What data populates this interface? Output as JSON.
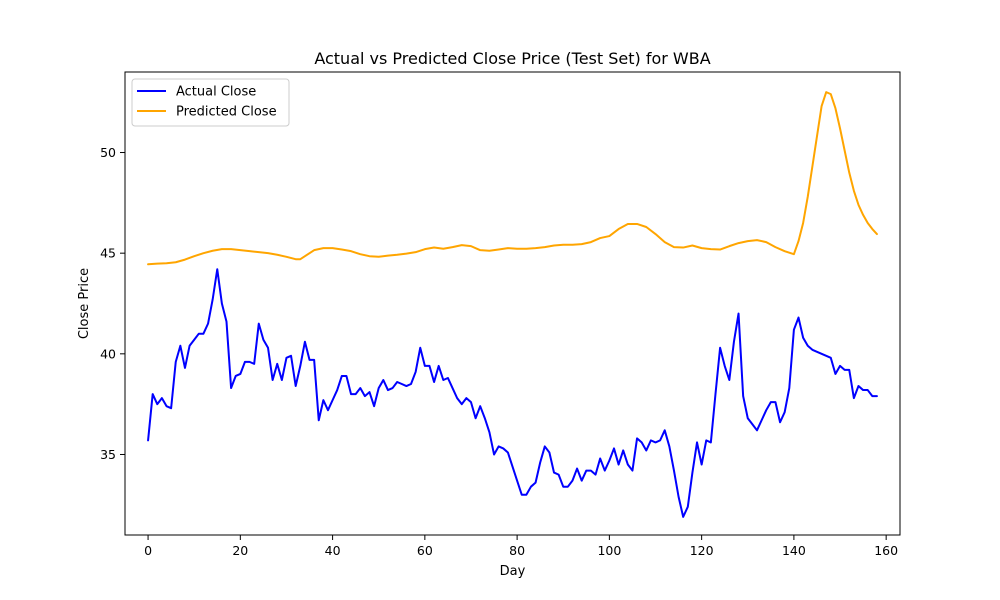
{
  "chart_data": {
    "type": "line",
    "title": "Actual vs Predicted Close Price (Test Set) for WBA",
    "xlabel": "Day",
    "ylabel": "Close Price",
    "xlim": [
      -5,
      163
    ],
    "ylim": [
      31,
      54
    ],
    "xticks": [
      "0",
      "20",
      "40",
      "60",
      "80",
      "100",
      "120",
      "140",
      "160"
    ],
    "yticks": [
      "35",
      "40",
      "45",
      "50"
    ],
    "grid": false,
    "legend_position": "top-left",
    "series": [
      {
        "name": "Actual Close",
        "color": "#0000ff",
        "x": [
          0,
          1,
          2,
          3,
          4,
          5,
          6,
          7,
          8,
          9,
          10,
          11,
          12,
          13,
          14,
          15,
          16,
          17,
          18,
          19,
          20,
          21,
          22,
          23,
          24,
          25,
          26,
          27,
          28,
          29,
          30,
          31,
          32,
          33,
          34,
          35,
          36,
          37,
          38,
          39,
          40,
          41,
          42,
          43,
          44,
          45,
          46,
          47,
          48,
          49,
          50,
          51,
          52,
          53,
          54,
          55,
          56,
          57,
          58,
          59,
          60,
          61,
          62,
          63,
          64,
          65,
          66,
          67,
          68,
          69,
          70,
          71,
          72,
          73,
          74,
          75,
          76,
          77,
          78,
          79,
          80,
          81,
          82,
          83,
          84,
          85,
          86,
          87,
          88,
          89,
          90,
          91,
          92,
          93,
          94,
          95,
          96,
          97,
          98,
          99,
          100,
          101,
          102,
          103,
          104,
          105,
          106,
          107,
          108,
          109,
          110,
          111,
          112,
          113,
          114,
          115,
          116,
          117,
          118,
          119,
          120,
          121,
          122,
          123,
          124,
          125,
          126,
          127,
          128,
          129,
          130,
          131,
          132,
          133,
          134,
          135,
          136,
          137,
          138,
          139,
          140,
          141,
          142,
          143,
          144,
          145,
          146,
          147,
          148,
          149,
          150,
          151,
          152,
          153,
          154,
          155,
          156,
          157,
          158
        ],
        "values": [
          35.7,
          38.0,
          37.5,
          37.8,
          37.4,
          37.3,
          39.6,
          40.4,
          39.3,
          40.4,
          40.7,
          41.0,
          41.0,
          41.5,
          42.7,
          44.2,
          42.5,
          41.6,
          38.3,
          38.9,
          39.0,
          39.6,
          39.6,
          39.5,
          41.5,
          40.7,
          40.3,
          38.7,
          39.5,
          38.7,
          39.8,
          39.9,
          38.4,
          39.4,
          40.6,
          39.7,
          39.7,
          36.7,
          37.7,
          37.2,
          37.7,
          38.2,
          38.9,
          38.9,
          38.0,
          38.0,
          38.3,
          37.9,
          38.1,
          37.4,
          38.3,
          38.7,
          38.2,
          38.3,
          38.6,
          38.5,
          38.4,
          38.5,
          39.1,
          40.3,
          39.4,
          39.4,
          38.6,
          39.4,
          38.7,
          38.8,
          38.3,
          37.8,
          37.5,
          37.8,
          37.6,
          36.8,
          37.4,
          36.8,
          36.1,
          35.0,
          35.4,
          35.3,
          35.1,
          34.4,
          33.7,
          33.0,
          33.0,
          33.4,
          33.6,
          34.6,
          35.4,
          35.1,
          34.1,
          34.0,
          33.4,
          33.4,
          33.7,
          34.3,
          33.7,
          34.2,
          34.2,
          34.0,
          34.8,
          34.2,
          34.7,
          35.3,
          34.5,
          35.2,
          34.5,
          34.2,
          35.8,
          35.6,
          35.2,
          35.7,
          35.6,
          35.7,
          36.2,
          35.4,
          34.2,
          32.9,
          31.9,
          32.4,
          34.1,
          35.6,
          34.5,
          35.7,
          35.6,
          38.0,
          40.3,
          39.4,
          38.7,
          40.6,
          42.0,
          37.9,
          36.8,
          36.5,
          36.2,
          36.7,
          37.2,
          37.6,
          37.6,
          36.6,
          37.1,
          38.3,
          41.2,
          41.8,
          40.8,
          40.4,
          40.2,
          40.1,
          40.0,
          39.9,
          39.8,
          39.0,
          39.4,
          39.2,
          39.2,
          37.8,
          38.4,
          38.2,
          38.2,
          37.9,
          37.9
        ]
      },
      {
        "name": "Predicted Close",
        "color": "#ffa500",
        "x": [
          0,
          2,
          4,
          6,
          8,
          10,
          12,
          14,
          16,
          18,
          20,
          22,
          24,
          26,
          28,
          30,
          32,
          33,
          34,
          36,
          38,
          40,
          42,
          44,
          46,
          48,
          50,
          52,
          54,
          56,
          58,
          60,
          62,
          64,
          66,
          68,
          70,
          72,
          74,
          76,
          78,
          80,
          82,
          84,
          86,
          88,
          90,
          92,
          94,
          96,
          98,
          100,
          102,
          104,
          106,
          108,
          110,
          112,
          114,
          116,
          118,
          120,
          122,
          124,
          126,
          128,
          130,
          132,
          134,
          136,
          138,
          140,
          141,
          142,
          143,
          144,
          145,
          146,
          147,
          148,
          149,
          150,
          151,
          152,
          153,
          154,
          155,
          156,
          157,
          158
        ],
        "values": [
          44.45,
          44.48,
          44.5,
          44.55,
          44.68,
          44.85,
          45.0,
          45.12,
          45.2,
          45.2,
          45.15,
          45.1,
          45.05,
          45.0,
          44.92,
          44.82,
          44.7,
          44.7,
          44.85,
          45.15,
          45.25,
          45.25,
          45.18,
          45.1,
          44.95,
          44.85,
          44.82,
          44.88,
          44.92,
          44.98,
          45.05,
          45.2,
          45.28,
          45.22,
          45.3,
          45.4,
          45.35,
          45.15,
          45.12,
          45.18,
          45.25,
          45.22,
          45.22,
          45.25,
          45.3,
          45.38,
          45.42,
          45.42,
          45.45,
          45.55,
          45.75,
          45.85,
          46.2,
          46.45,
          46.45,
          46.3,
          45.95,
          45.55,
          45.3,
          45.28,
          45.38,
          45.25,
          45.2,
          45.18,
          45.35,
          45.5,
          45.6,
          45.65,
          45.55,
          45.3,
          45.1,
          44.95,
          45.6,
          46.5,
          47.8,
          49.3,
          50.8,
          52.3,
          53.0,
          52.9,
          52.2,
          51.2,
          50.1,
          49.0,
          48.1,
          47.4,
          46.9,
          46.5,
          46.2,
          45.95
        ]
      }
    ]
  }
}
